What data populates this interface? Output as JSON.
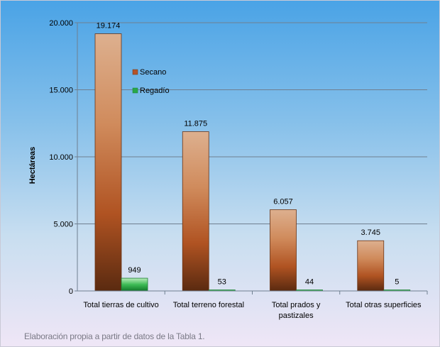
{
  "chart_data": {
    "type": "bar",
    "categories": [
      [
        "Total tierras de cultivo"
      ],
      [
        "Total terreno forestal"
      ],
      [
        "Total prados y",
        "pastizales"
      ],
      [
        "Total otras superficies"
      ]
    ],
    "series": [
      {
        "name": "Secano",
        "values": [
          19174,
          11875,
          6057,
          3745
        ],
        "labels": [
          "19.174",
          "11.875",
          "6.057",
          "3.745"
        ],
        "color": "#b5542a"
      },
      {
        "name": "Regadío",
        "values": [
          949,
          53,
          44,
          5
        ],
        "labels": [
          "949",
          "53",
          "44",
          "5"
        ],
        "color": "#27a84a"
      }
    ],
    "ylabel": "Hectáreas",
    "ylim": [
      0,
      20000
    ],
    "yticks": [
      0,
      5000,
      10000,
      15000,
      20000
    ],
    "ytick_labels": [
      "0",
      "5.000",
      "10.000",
      "15.000",
      "20.000"
    ],
    "grid": true,
    "legend_position": "inside-left"
  },
  "footer": {
    "source_note": "Elaboración propia a partir de datos de la Tabla 1."
  }
}
